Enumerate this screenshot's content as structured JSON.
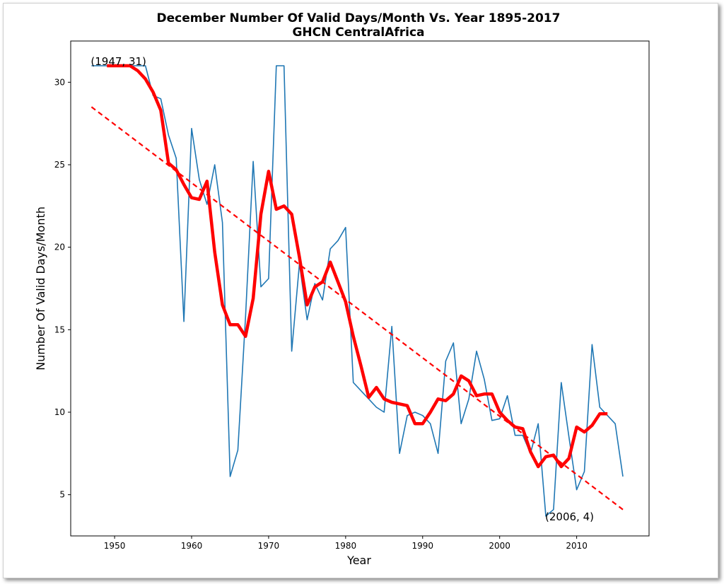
{
  "chart_data": {
    "type": "line",
    "title": "December Number Of Valid Days/Month Vs. Year 1895-2017",
    "subtitle": "GHCN CentralAfrica",
    "xlabel": "Year",
    "ylabel": "Number Of Valid Days/Month",
    "xlim": [
      1944.3,
      2019.4
    ],
    "ylim": [
      2.5,
      32.5
    ],
    "xticks": [
      1950,
      1960,
      1970,
      1980,
      1990,
      2000,
      2010
    ],
    "yticks": [
      5,
      10,
      15,
      20,
      25,
      30
    ],
    "grid": false,
    "annotations": [
      {
        "text": "(1947, 31)",
        "x": 1947,
        "y": 31
      },
      {
        "text": "(2006, 4)",
        "x": 2006,
        "y": 3.65
      }
    ],
    "series": [
      {
        "style": "raw",
        "color": "#1f77b4",
        "x": [
          1947,
          1948,
          1949,
          1950,
          1951,
          1952,
          1953,
          1954,
          1955,
          1956,
          1957,
          1958,
          1959,
          1960,
          1961,
          1962,
          1963,
          1964,
          1965,
          1966,
          1967,
          1968,
          1969,
          1970,
          1971,
          1972,
          1973,
          1974,
          1975,
          1976,
          1977,
          1978,
          1979,
          1980,
          1981,
          1982,
          1983,
          1984,
          1985,
          1986,
          1987,
          1988,
          1989,
          1990,
          1991,
          1992,
          1993,
          1994,
          1995,
          1996,
          1997,
          1998,
          1999,
          2000,
          2001,
          2002,
          2003,
          2004,
          2005,
          2006,
          2007,
          2008,
          2009,
          2010,
          2011,
          2012,
          2013,
          2014,
          2015,
          2016
        ],
        "values": [
          31,
          31,
          31,
          31,
          31,
          31,
          31,
          31,
          29.2,
          29,
          26.8,
          25.4,
          15.5,
          27.2,
          24.1,
          22.6,
          25,
          21.5,
          6.1,
          7.7,
          15.8,
          25.2,
          17.6,
          18.1,
          31,
          31,
          13.7,
          19,
          15.6,
          17.8,
          16.8,
          19.9,
          20.4,
          21.2,
          11.8,
          11.3,
          10.8,
          10.3,
          10,
          15.2,
          7.5,
          9.8,
          10,
          9.8,
          9.3,
          7.5,
          13.1,
          14.2,
          9.3,
          10.8,
          13.7,
          12,
          9.5,
          9.6,
          11,
          8.6,
          8.6,
          7.5,
          9.3,
          3.7,
          4.1,
          11.8,
          8.5,
          5.3,
          6.4,
          14.1,
          10.3,
          9.8,
          9.3,
          6.1
        ]
      },
      {
        "style": "moving-average",
        "color": "#ff0000",
        "x": [
          1949,
          1950,
          1951,
          1952,
          1953,
          1954,
          1955,
          1956,
          1957,
          1958,
          1959,
          1960,
          1961,
          1962,
          1963,
          1964,
          1965,
          1966,
          1967,
          1968,
          1969,
          1970,
          1971,
          1972,
          1973,
          1974,
          1975,
          1976,
          1977,
          1978,
          1979,
          1980,
          1981,
          1982,
          1983,
          1984,
          1985,
          1986,
          1987,
          1988,
          1989,
          1990,
          1991,
          1992,
          1993,
          1994,
          1995,
          1996,
          1997,
          1998,
          1999,
          2000,
          2001,
          2002,
          2003,
          2004,
          2005,
          2006,
          2007,
          2008,
          2009,
          2010,
          2011,
          2012,
          2013,
          2014
        ],
        "values": [
          31,
          31,
          31,
          31,
          30.7,
          30.2,
          29.4,
          28.3,
          25.1,
          24.7,
          23.8,
          23,
          22.9,
          24,
          19.7,
          16.5,
          15.3,
          15.3,
          14.6,
          16.9,
          22,
          24.6,
          22.3,
          22.5,
          22,
          19.4,
          16.5,
          17.6,
          17.9,
          19.1,
          17.9,
          16.7,
          14.6,
          12.8,
          10.9,
          11.5,
          10.8,
          10.6,
          10.5,
          10.4,
          9.3,
          9.3,
          10,
          10.8,
          10.7,
          11.1,
          12.2,
          11.9,
          11,
          11.1,
          11.1,
          10,
          9.5,
          9.1,
          9,
          7.6,
          6.7,
          7.3,
          7.4,
          6.7,
          7.2,
          9.1,
          8.8,
          9.2,
          9.9,
          9.9
        ]
      },
      {
        "style": "trend",
        "color": "#ff0000",
        "x": [
          1947,
          2016
        ],
        "values": [
          28.5,
          4.1
        ]
      }
    ]
  }
}
